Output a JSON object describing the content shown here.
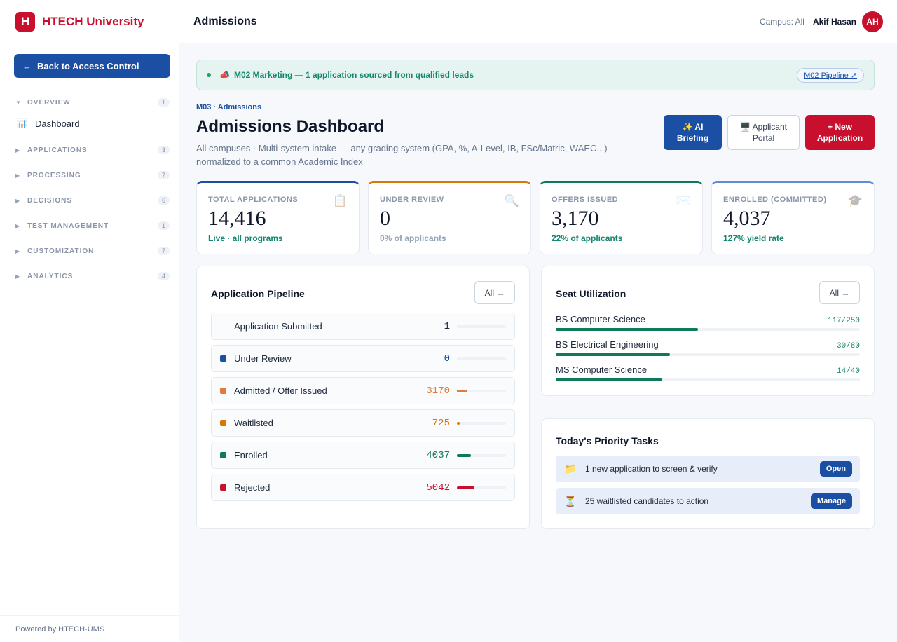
{
  "brand": {
    "logo_letter": "H",
    "name": "HTECH University"
  },
  "sidebar": {
    "back_label": "Back to Access Control",
    "sections": [
      {
        "label": "OVERVIEW",
        "count": "1",
        "expanded": true
      },
      {
        "label": "APPLICATIONS",
        "count": "3"
      },
      {
        "label": "PROCESSING",
        "count": "7"
      },
      {
        "label": "DECISIONS",
        "count": "6"
      },
      {
        "label": "TEST MANAGEMENT",
        "count": "1"
      },
      {
        "label": "CUSTOMIZATION",
        "count": "7"
      },
      {
        "label": "ANALYTICS",
        "count": "4"
      }
    ],
    "overview_item": {
      "label": "Dashboard",
      "icon": "bar-chart-icon"
    },
    "footer": "Powered by HTECH-UMS"
  },
  "header": {
    "title": "Admissions",
    "campus": "Campus: All",
    "user": "Akif Hasan",
    "avatar": "AH"
  },
  "banner": {
    "icon": "megaphone-icon",
    "text": "M02 Marketing — 1 application sourced from qualified leads",
    "link": "M02 Pipeline ↗"
  },
  "page": {
    "crumb": "M03 · Admissions",
    "title": "Admissions Dashboard",
    "subtitle": "All campuses · Multi-system intake — any grading system (GPA, %, A-Level, IB, FSc/Matric, WAEC...) normalized to a common Academic Index"
  },
  "actions": {
    "ai_line1": "✨ AI",
    "ai_line2": "Briefing",
    "portal_line1": "🖥️ Applicant",
    "portal_line2": "Portal",
    "new_line1": "+ New",
    "new_line2": "Application"
  },
  "kpis": [
    {
      "label": "TOTAL APPLICATIONS",
      "value": "14,416",
      "sub": "Live · all programs",
      "accent": "#1a4fa3",
      "sub_color": "#15866b",
      "icon": "📋"
    },
    {
      "label": "UNDER REVIEW",
      "value": "0",
      "sub": "0% of applicants",
      "accent": "#d97706",
      "sub_color": "#94a3b8",
      "icon": "🔍"
    },
    {
      "label": "OFFERS ISSUED",
      "value": "3,170",
      "sub": "22% of applicants",
      "accent": "#0f7a5a",
      "sub_color": "#15866b",
      "icon": "✉️"
    },
    {
      "label": "ENROLLED (COMMITTED)",
      "value": "4,037",
      "sub": "127% yield rate",
      "accent": "#5b8fd4",
      "sub_color": "#15866b",
      "icon": "🎓"
    }
  ],
  "pipeline": {
    "title": "Application Pipeline",
    "all_label": "All →",
    "rows": [
      {
        "label": "Application Submitted",
        "value": "1",
        "color": "",
        "val_color": "#1e293b",
        "fill": 0.0
      },
      {
        "label": "Under Review",
        "value": "0",
        "color": "#1a4fa3",
        "val_color": "#1a4fa3",
        "fill": 0.0
      },
      {
        "label": "Admitted / Offer Issued",
        "value": "3170",
        "color": "#e07b39",
        "val_color": "#e07b39",
        "fill": 0.22
      },
      {
        "label": "Waitlisted",
        "value": "725",
        "color": "#d97706",
        "val_color": "#d97706",
        "fill": 0.05
      },
      {
        "label": "Enrolled",
        "value": "4037",
        "color": "#0f7a5a",
        "val_color": "#0f7a5a",
        "fill": 0.28
      },
      {
        "label": "Rejected",
        "value": "5042",
        "color": "#c8102e",
        "val_color": "#c8102e",
        "fill": 0.35
      }
    ]
  },
  "seats": {
    "title": "Seat Utilization",
    "all_label": "All →",
    "rows": [
      {
        "name": "BS Computer Science",
        "value": "117/250",
        "fill": 0.468
      },
      {
        "name": "BS Electrical Engineering",
        "value": "30/80",
        "fill": 0.375
      },
      {
        "name": "MS Computer Science",
        "value": "14/40",
        "fill": 0.35
      }
    ]
  },
  "tasks": {
    "title": "Today's Priority Tasks",
    "rows": [
      {
        "icon": "📁",
        "label": "1 new application to screen & verify",
        "button": "Open"
      },
      {
        "icon": "⏳",
        "label": "25 waitlisted candidates to action",
        "button": "Manage"
      }
    ]
  }
}
